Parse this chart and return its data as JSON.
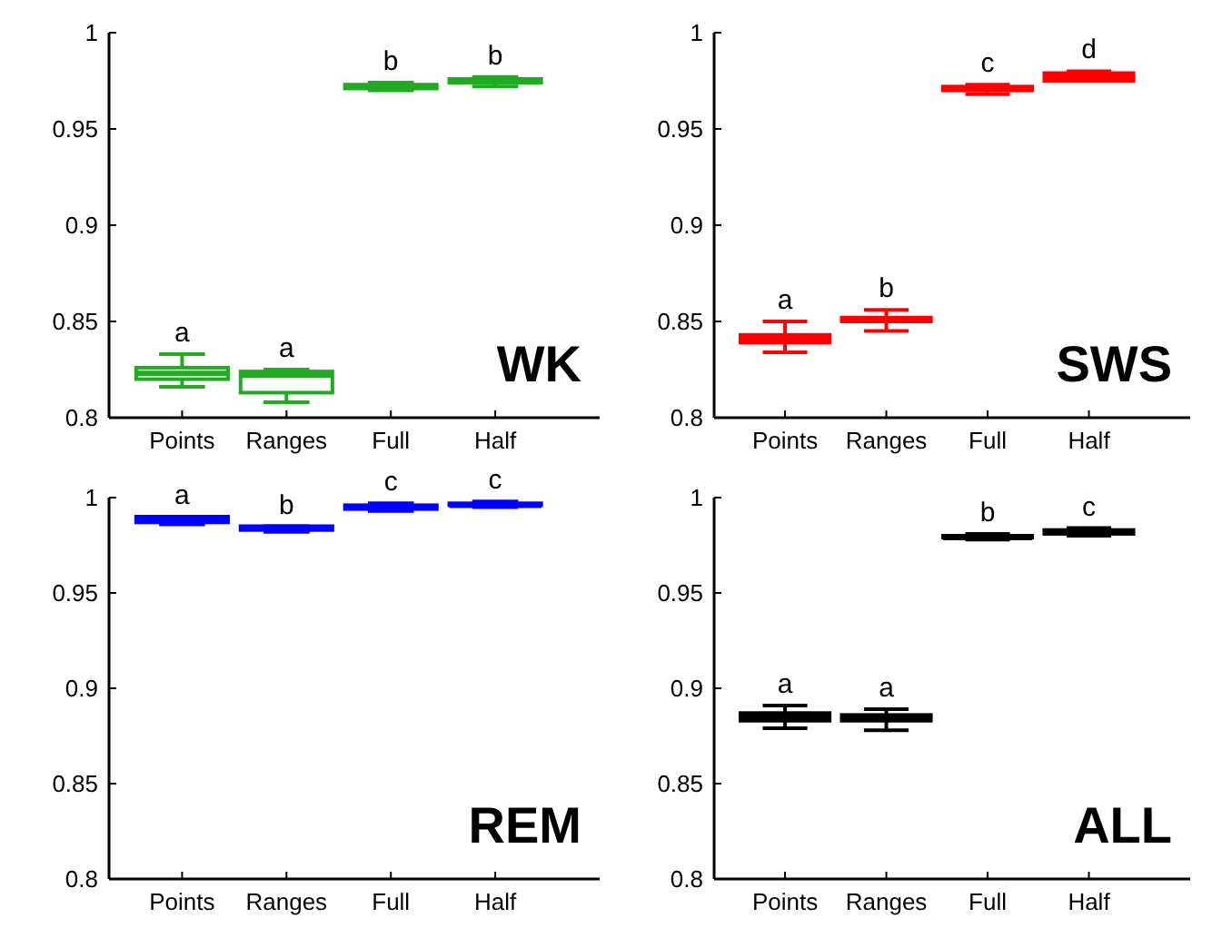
{
  "chart_data": [
    {
      "type": "box",
      "color": "#22aa22",
      "categories": [
        "Points",
        "Ranges",
        "Full",
        "Half"
      ],
      "ylim": [
        0.8,
        1
      ],
      "yticks": [
        0.8,
        0.85,
        0.9,
        0.95,
        1
      ],
      "boxes": [
        {
          "low": 0.816,
          "q1": 0.82,
          "median": 0.823,
          "q3": 0.826,
          "high": 0.833
        },
        {
          "low": 0.808,
          "q1": 0.813,
          "median": 0.822,
          "q3": 0.824,
          "high": 0.825
        },
        {
          "low": 0.97,
          "q1": 0.971,
          "median": 0.972,
          "q3": 0.973,
          "high": 0.974
        },
        {
          "low": 0.972,
          "q1": 0.974,
          "median": 0.975,
          "q3": 0.976,
          "high": 0.977
        }
      ],
      "annotations": [
        "WK",
        {
          "text": "a",
          "x": "Points",
          "y": 0.833
        },
        {
          "text": "a",
          "x": "Ranges",
          "y": 0.825
        },
        {
          "text": "b",
          "x": "Full",
          "y": 0.974
        },
        {
          "text": "b",
          "x": "Half",
          "y": 0.977
        }
      ]
    },
    {
      "type": "box",
      "color": "#ff0000",
      "categories": [
        "Points",
        "Ranges",
        "Full",
        "Half"
      ],
      "ylim": [
        0.8,
        1
      ],
      "yticks": [
        0.8,
        0.85,
        0.9,
        0.95,
        1
      ],
      "boxes": [
        {
          "low": 0.834,
          "q1": 0.839,
          "median": 0.841,
          "q3": 0.843,
          "high": 0.85
        },
        {
          "low": 0.845,
          "q1": 0.85,
          "median": 0.851,
          "q3": 0.852,
          "high": 0.856
        },
        {
          "low": 0.968,
          "q1": 0.97,
          "median": 0.971,
          "q3": 0.972,
          "high": 0.973
        },
        {
          "low": 0.975,
          "q1": 0.975,
          "median": 0.977,
          "q3": 0.979,
          "high": 0.98
        }
      ],
      "annotations": [
        "SWS",
        {
          "text": "a",
          "x": "Points",
          "y": 0.85
        },
        {
          "text": "b",
          "x": "Ranges",
          "y": 0.856
        },
        {
          "text": "c",
          "x": "Full",
          "y": 0.973
        },
        {
          "text": "d",
          "x": "Half",
          "y": 0.98
        }
      ]
    },
    {
      "type": "box",
      "color": "#0000ff",
      "categories": [
        "Points",
        "Ranges",
        "Full",
        "Half"
      ],
      "ylim": [
        0.8,
        1
      ],
      "yticks": [
        0.8,
        0.85,
        0.9,
        0.95,
        1
      ],
      "boxes": [
        {
          "low": 0.986,
          "q1": 0.987,
          "median": 0.988,
          "q3": 0.99,
          "high": 0.99
        },
        {
          "low": 0.982,
          "q1": 0.983,
          "median": 0.984,
          "q3": 0.985,
          "high": 0.985
        },
        {
          "low": 0.993,
          "q1": 0.994,
          "median": 0.995,
          "q3": 0.996,
          "high": 0.997
        },
        {
          "low": 0.995,
          "q1": 0.996,
          "median": 0.996,
          "q3": 0.997,
          "high": 0.998
        }
      ],
      "annotations": [
        "REM",
        {
          "text": "a",
          "x": "Points",
          "y": 0.99
        },
        {
          "text": "b",
          "x": "Ranges",
          "y": 0.985
        },
        {
          "text": "c",
          "x": "Full",
          "y": 0.997
        },
        {
          "text": "c",
          "x": "Half",
          "y": 0.998
        }
      ]
    },
    {
      "type": "box",
      "color": "#000000",
      "categories": [
        "Points",
        "Ranges",
        "Full",
        "Half"
      ],
      "ylim": [
        0.8,
        1
      ],
      "yticks": [
        0.8,
        0.85,
        0.9,
        0.95,
        1
      ],
      "boxes": [
        {
          "low": 0.879,
          "q1": 0.883,
          "median": 0.885,
          "q3": 0.887,
          "high": 0.891
        },
        {
          "low": 0.878,
          "q1": 0.883,
          "median": 0.885,
          "q3": 0.886,
          "high": 0.889
        },
        {
          "low": 0.978,
          "q1": 0.979,
          "median": 0.979,
          "q3": 0.98,
          "high": 0.981
        },
        {
          "low": 0.98,
          "q1": 0.981,
          "median": 0.982,
          "q3": 0.983,
          "high": 0.984
        }
      ],
      "annotations": [
        "ALL",
        {
          "text": "b",
          "x": "Full",
          "y": 0.981
        },
        {
          "text": "c",
          "x": "Half",
          "y": 0.984
        },
        {
          "text": "a",
          "x": "Points",
          "y": 0.891
        },
        {
          "text": "a",
          "x": "Ranges",
          "y": 0.889
        }
      ]
    }
  ]
}
